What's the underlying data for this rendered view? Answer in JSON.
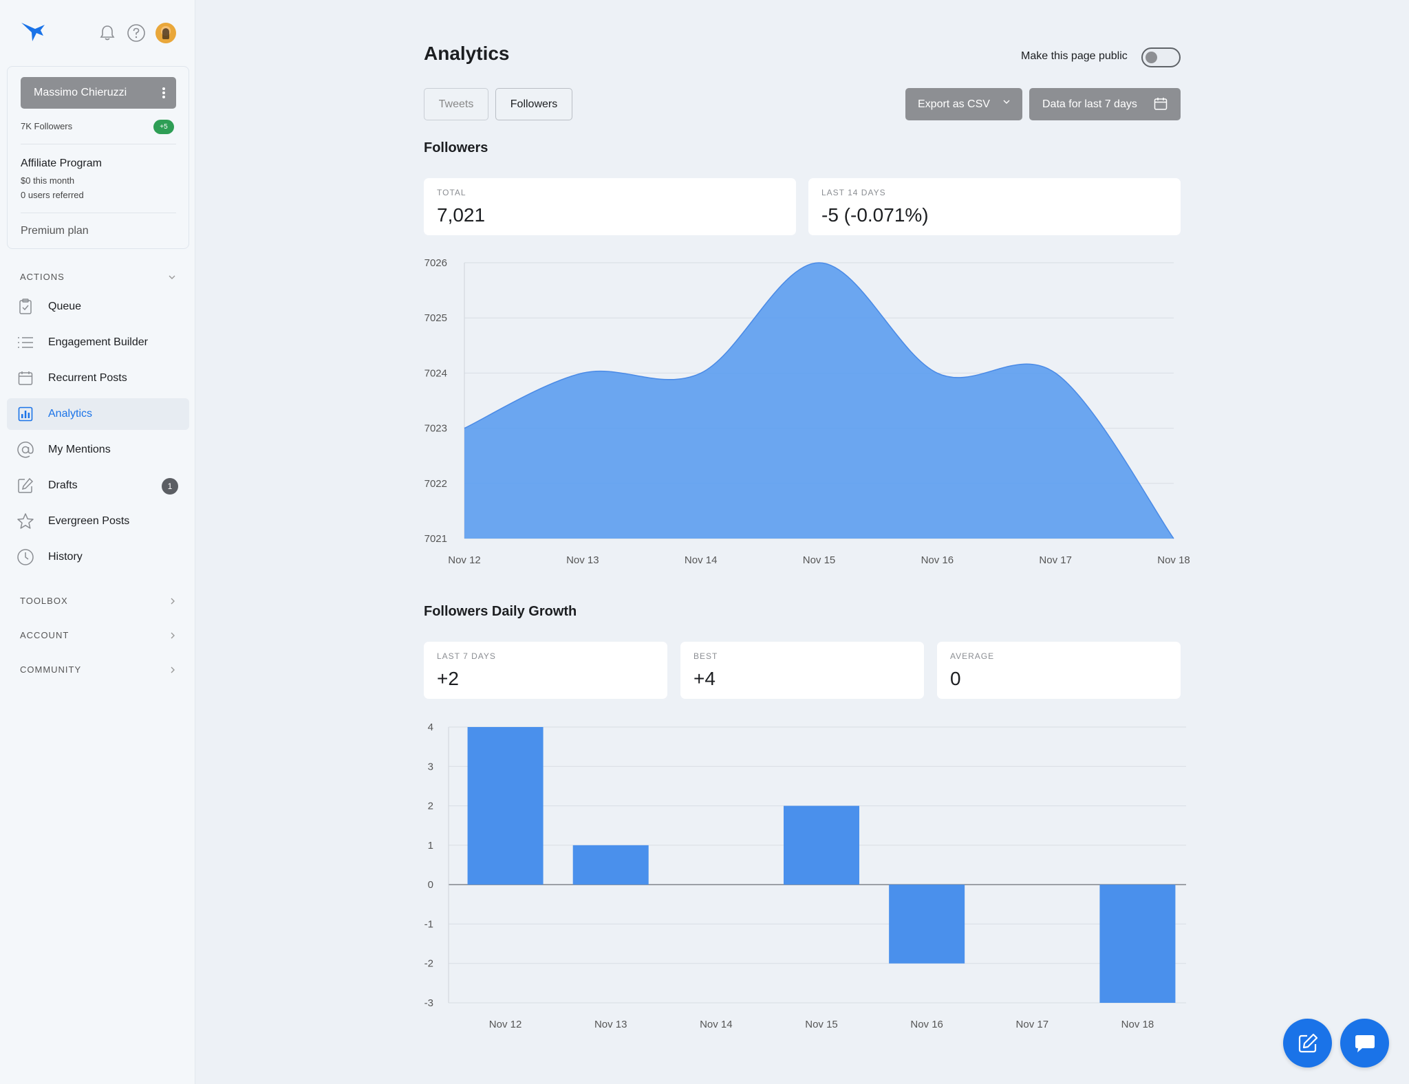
{
  "colors": {
    "accent": "#1a73e8",
    "chart_fill": "#5c9df0",
    "bar_fill": "#4a90ec",
    "badge_green": "#2e9e55"
  },
  "header": {
    "notifications_icon": "bell-icon",
    "help_icon": "question-circle-icon",
    "avatar_icon": "user-avatar"
  },
  "profile": {
    "name": "Massimo Chieruzzi",
    "followers": "7K Followers",
    "followers_delta": "+5",
    "affiliate_title": "Affiliate Program",
    "affiliate_earnings": "$0 this month",
    "affiliate_referred": "0 users referred",
    "plan": "Premium plan"
  },
  "sidebar": {
    "actions_label": "ACTIONS",
    "items": [
      {
        "label": "Queue",
        "icon": "clipboard-check-icon"
      },
      {
        "label": "Engagement Builder",
        "icon": "list-icon"
      },
      {
        "label": "Recurrent Posts",
        "icon": "calendar-icon"
      },
      {
        "label": "Analytics",
        "icon": "bar-chart-icon",
        "active": true
      },
      {
        "label": "My Mentions",
        "icon": "at-icon"
      },
      {
        "label": "Drafts",
        "icon": "pencil-square-icon",
        "badge": "1"
      },
      {
        "label": "Evergreen Posts",
        "icon": "star-icon"
      },
      {
        "label": "History",
        "icon": "clock-icon"
      }
    ],
    "sections": [
      {
        "label": "TOOLBOX"
      },
      {
        "label": "ACCOUNT"
      },
      {
        "label": "COMMUNITY"
      }
    ]
  },
  "main": {
    "title": "Analytics",
    "public_toggle_label": "Make this page public",
    "public_toggle_on": false,
    "tabs": [
      {
        "label": "Tweets"
      },
      {
        "label": "Followers",
        "active": true
      }
    ],
    "export_label": "Export as CSV",
    "date_range_label": "Data for last 7 days",
    "followers_section": {
      "title": "Followers",
      "stats": [
        {
          "label": "TOTAL",
          "value": "7,021"
        },
        {
          "label": "LAST 14 DAYS",
          "value": "-5 (-0.071%)"
        }
      ]
    },
    "growth_section": {
      "title": "Followers Daily Growth",
      "stats": [
        {
          "label": "LAST 7 DAYS",
          "value": "+2"
        },
        {
          "label": "BEST",
          "value": "+4"
        },
        {
          "label": "AVERAGE",
          "value": "0"
        }
      ]
    }
  },
  "chart_data": [
    {
      "type": "area",
      "title": "",
      "xlabel": "",
      "ylabel": "",
      "x": [
        "Nov 12",
        "Nov 13",
        "Nov 14",
        "Nov 15",
        "Nov 16",
        "Nov 17",
        "Nov 18"
      ],
      "series": [
        {
          "values": [
            7023,
            7024,
            7024,
            7026,
            7024,
            7024,
            7021
          ]
        }
      ],
      "ylim": [
        7021,
        7026
      ],
      "yticks": [
        7021,
        7022,
        7023,
        7024,
        7025,
        7026
      ],
      "grid": true,
      "legend": "none"
    },
    {
      "type": "bar",
      "title": "",
      "xlabel": "",
      "ylabel": "",
      "categories": [
        "Nov 12",
        "Nov 13",
        "Nov 14",
        "Nov 15",
        "Nov 16",
        "Nov 17",
        "Nov 18"
      ],
      "values": [
        4,
        1,
        0,
        2,
        -2,
        0,
        -3
      ],
      "ylim": [
        -3,
        4
      ],
      "yticks": [
        -3,
        -2,
        -1,
        0,
        1,
        2,
        3,
        4
      ],
      "grid": true,
      "legend": "none"
    }
  ],
  "fab": {
    "compose_icon": "compose-icon",
    "chat_icon": "chat-icon"
  }
}
